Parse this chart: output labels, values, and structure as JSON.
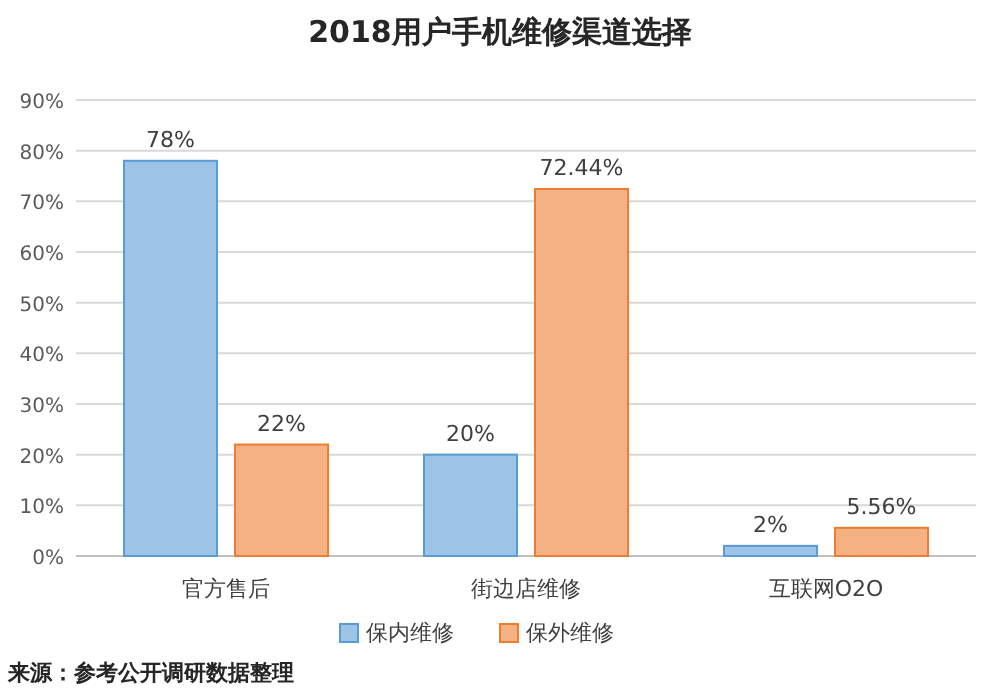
{
  "chart_data": {
    "type": "bar",
    "title": "2018用户手机维修渠道选择",
    "categories": [
      "官方售后",
      "街边店维修",
      "互联网O2O"
    ],
    "series": [
      {
        "name": "保内维修",
        "color": "#9dc3e6",
        "values": [
          78,
          20,
          2
        ],
        "value_labels": [
          "78%",
          "20%",
          "2%"
        ]
      },
      {
        "name": "保外维修",
        "color": "#f4b183",
        "values": [
          22,
          72.44,
          5.56
        ],
        "value_labels": [
          "22%",
          "72.44%",
          "5.56%"
        ]
      }
    ],
    "ylim": [
      0,
      90
    ],
    "yticks": [
      {
        "value": 0,
        "label": "0%"
      },
      {
        "value": 10,
        "label": "10%"
      },
      {
        "value": 20,
        "label": "20%"
      },
      {
        "value": 30,
        "label": "30%"
      },
      {
        "value": 40,
        "label": "40%"
      },
      {
        "value": 50,
        "label": "50%"
      },
      {
        "value": 60,
        "label": "60%"
      },
      {
        "value": 70,
        "label": "70%"
      },
      {
        "value": 80,
        "label": "80%"
      },
      {
        "value": 90,
        "label": "90%"
      }
    ],
    "grid": "y",
    "legend": "bottom",
    "annotations": [
      "来源：参考公开调研数据整理"
    ]
  }
}
